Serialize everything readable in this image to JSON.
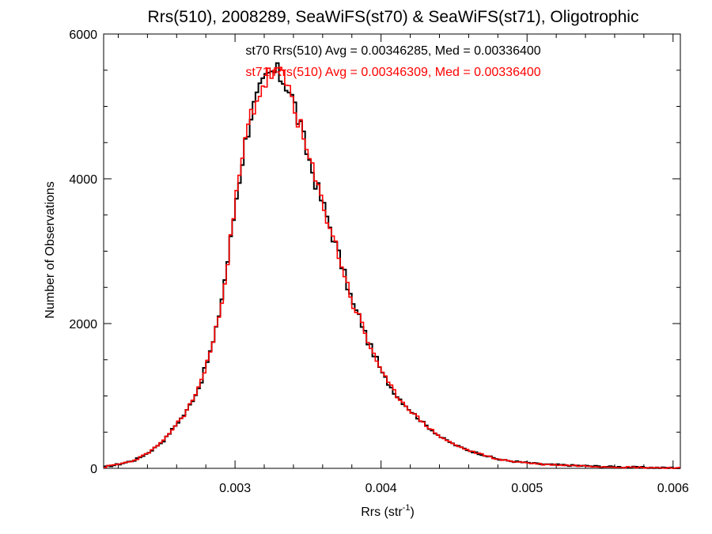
{
  "chart_data": {
    "type": "histogram",
    "title": "Rrs(510), 2008289, SeaWiFS(st70) & SeaWiFS(st71), Oligotrophic",
    "xlabel": {
      "base": "Rrs (str",
      "sup": "-1",
      "close": ")"
    },
    "ylabel": "Number of Observations",
    "xlim": [
      0.0021,
      0.00605
    ],
    "ylim": [
      0,
      6000
    ],
    "xticks": [
      {
        "value": 0.003,
        "label": "0.003"
      },
      {
        "value": 0.004,
        "label": "0.004"
      },
      {
        "value": 0.005,
        "label": "0.005"
      },
      {
        "value": 0.006,
        "label": "0.006"
      }
    ],
    "yticks": [
      {
        "value": 0,
        "label": "0"
      },
      {
        "value": 2000,
        "label": "2000"
      },
      {
        "value": 4000,
        "label": "4000"
      },
      {
        "value": 6000,
        "label": "6000"
      }
    ],
    "bin_width": 2e-05,
    "series": [
      {
        "name": "st70",
        "color": "#000000",
        "legend": "st70 Rrs(510) Avg = 0.00346285, Med = 0.00336400",
        "bins": [
          [
            0.0021,
            20
          ],
          [
            0.0022,
            60
          ],
          [
            0.0023,
            110
          ],
          [
            0.0024,
            220
          ],
          [
            0.0025,
            380
          ],
          [
            0.0026,
            640
          ],
          [
            0.00265,
            760
          ],
          [
            0.0027,
            950
          ],
          [
            0.00275,
            1150
          ],
          [
            0.0028,
            1480
          ],
          [
            0.00285,
            1800
          ],
          [
            0.0029,
            2350
          ],
          [
            0.00295,
            3000
          ],
          [
            0.003,
            3750
          ],
          [
            0.00305,
            4400
          ],
          [
            0.0031,
            4900
          ],
          [
            0.00315,
            5150
          ],
          [
            0.0032,
            5350
          ],
          [
            0.00325,
            5480
          ],
          [
            0.0033,
            5420
          ],
          [
            0.00335,
            5300
          ],
          [
            0.0034,
            5000
          ],
          [
            0.00345,
            4600
          ],
          [
            0.0035,
            4250
          ],
          [
            0.00355,
            3900
          ],
          [
            0.0036,
            3600
          ],
          [
            0.00365,
            3280
          ],
          [
            0.0037,
            2950
          ],
          [
            0.00375,
            2600
          ],
          [
            0.0038,
            2250
          ],
          [
            0.00385,
            2050
          ],
          [
            0.0039,
            1750
          ],
          [
            0.00395,
            1550
          ],
          [
            0.004,
            1300
          ],
          [
            0.0041,
            1000
          ],
          [
            0.0042,
            780
          ],
          [
            0.0043,
            590
          ],
          [
            0.0044,
            430
          ],
          [
            0.0045,
            320
          ],
          [
            0.0046,
            240
          ],
          [
            0.0047,
            180
          ],
          [
            0.0048,
            120
          ],
          [
            0.0049,
            95
          ],
          [
            0.005,
            75
          ],
          [
            0.0051,
            55
          ],
          [
            0.0053,
            40
          ],
          [
            0.0055,
            25
          ],
          [
            0.0057,
            15
          ],
          [
            0.0059,
            8
          ],
          [
            0.00605,
            5
          ]
        ]
      },
      {
        "name": "st71",
        "color": "#ff0000",
        "legend": "st71 Rrs(510) Avg = 0.00346309, Med = 0.00336400",
        "bins": [
          [
            0.0021,
            20
          ],
          [
            0.0022,
            60
          ],
          [
            0.0023,
            110
          ],
          [
            0.0024,
            220
          ],
          [
            0.0025,
            380
          ],
          [
            0.0026,
            640
          ],
          [
            0.00265,
            760
          ],
          [
            0.0027,
            950
          ],
          [
            0.00275,
            1150
          ],
          [
            0.0028,
            1480
          ],
          [
            0.00285,
            1800
          ],
          [
            0.0029,
            2350
          ],
          [
            0.00295,
            3000
          ],
          [
            0.003,
            3750
          ],
          [
            0.00305,
            4400
          ],
          [
            0.0031,
            4900
          ],
          [
            0.00315,
            5150
          ],
          [
            0.0032,
            5350
          ],
          [
            0.00325,
            5480
          ],
          [
            0.0033,
            5420
          ],
          [
            0.00335,
            5300
          ],
          [
            0.0034,
            5000
          ],
          [
            0.00345,
            4600
          ],
          [
            0.0035,
            4250
          ],
          [
            0.00355,
            3900
          ],
          [
            0.0036,
            3600
          ],
          [
            0.00365,
            3280
          ],
          [
            0.0037,
            2950
          ],
          [
            0.00375,
            2600
          ],
          [
            0.0038,
            2250
          ],
          [
            0.00385,
            2050
          ],
          [
            0.0039,
            1750
          ],
          [
            0.00395,
            1550
          ],
          [
            0.004,
            1300
          ],
          [
            0.0041,
            1000
          ],
          [
            0.0042,
            780
          ],
          [
            0.0043,
            590
          ],
          [
            0.0044,
            430
          ],
          [
            0.0045,
            320
          ],
          [
            0.0046,
            240
          ],
          [
            0.0047,
            180
          ],
          [
            0.0048,
            120
          ],
          [
            0.0049,
            95
          ],
          [
            0.005,
            75
          ],
          [
            0.0051,
            55
          ],
          [
            0.0053,
            40
          ],
          [
            0.0055,
            25
          ],
          [
            0.0057,
            15
          ],
          [
            0.0059,
            8
          ],
          [
            0.00605,
            5
          ]
        ]
      }
    ]
  }
}
